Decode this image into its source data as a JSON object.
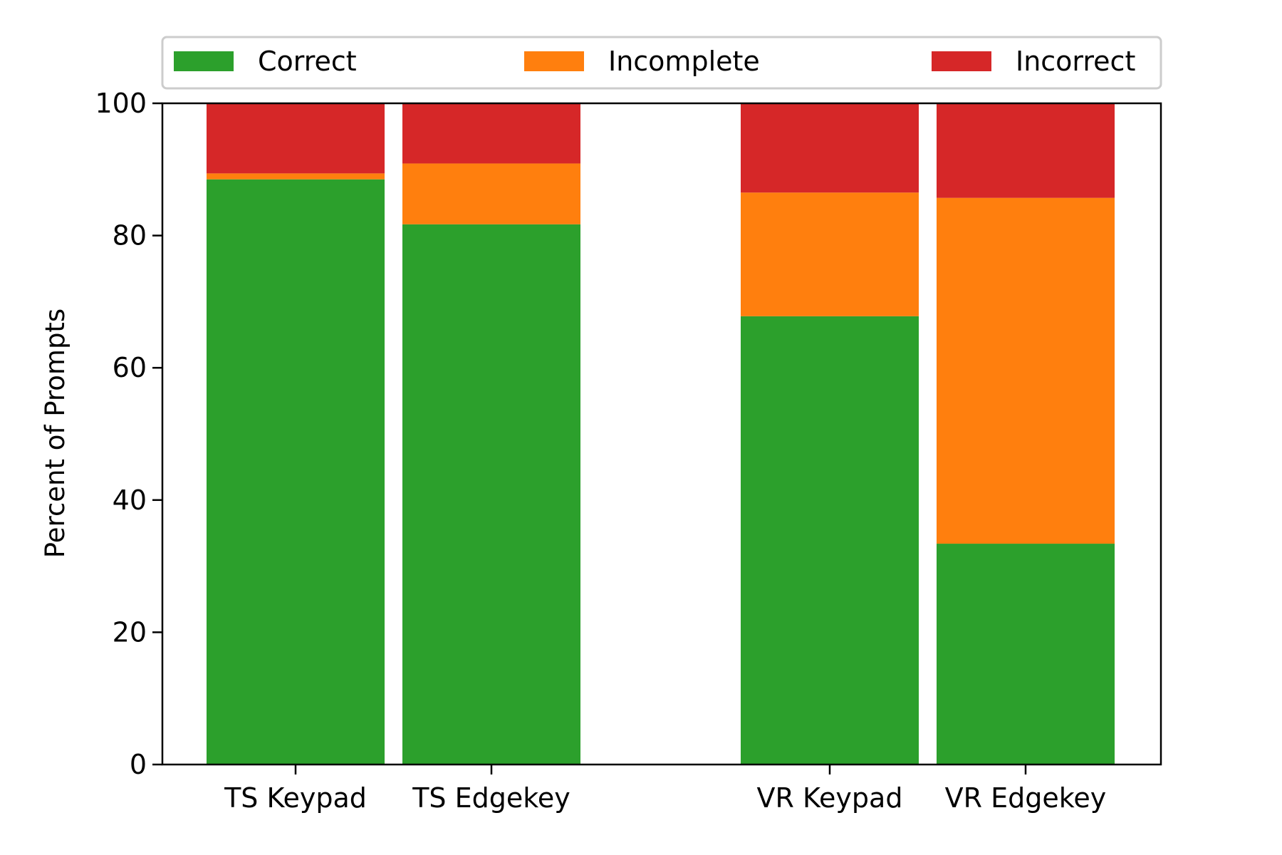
{
  "chart_data": {
    "type": "bar",
    "stacked": true,
    "title": "",
    "xlabel": "",
    "ylabel": "Percent of Prompts",
    "ylim": [
      0,
      100
    ],
    "yticks": [
      "0",
      "20",
      "40",
      "60",
      "80",
      "100"
    ],
    "grid": false,
    "legend_position": "top",
    "categories": [
      "TS Keypad",
      "TS Edgekey",
      "VR Keypad",
      "VR Edgekey"
    ],
    "series": [
      {
        "name": "Correct",
        "color": "#2ca02c",
        "values": [
          88.5,
          81.7,
          67.8,
          33.4
        ]
      },
      {
        "name": "Incomplete",
        "color": "#ff7f0e",
        "values": [
          0.9,
          9.2,
          18.7,
          52.3
        ]
      },
      {
        "name": "Incorrect",
        "color": "#d62728",
        "values": [
          10.6,
          9.1,
          13.5,
          14.3
        ]
      }
    ]
  }
}
